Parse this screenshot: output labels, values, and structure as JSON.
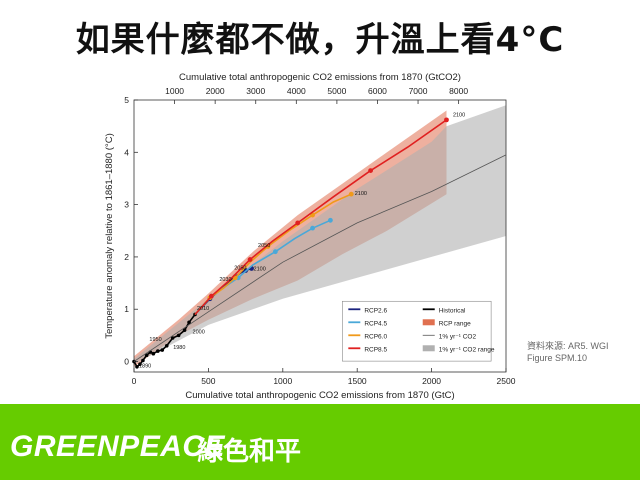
{
  "slide": {
    "title": "如果什麼都不做，升溫上看4°C",
    "source_line1": "資料來源: AR5. WGI",
    "source_line2": "Figure SPM.10"
  },
  "footer": {
    "brand": "GREENPEACE",
    "brand_cn": "綠色和平",
    "color": "#66cc00"
  },
  "chart_data": {
    "type": "line",
    "title_top": "Cumulative total anthropogenic CO2 emissions from 1870 (GtCO2)",
    "xlabel": "Cumulative total anthropogenic CO2 emissions from 1870 (GtC)",
    "ylabel": "Temperature anomaly relative to 1861–1880 (°C)",
    "xlim": [
      0,
      2500
    ],
    "ylim": [
      -0.2,
      5
    ],
    "x_ticks": [
      "0",
      "500",
      "1000",
      "1500",
      "2000",
      "2500"
    ],
    "y_ticks": [
      "0",
      "1",
      "2",
      "3",
      "4",
      "5"
    ],
    "top_ticks": [
      "1000",
      "2000",
      "3000",
      "4000",
      "5000",
      "6000",
      "7000",
      "8000"
    ],
    "legend_position": "bottom-right",
    "legend": [
      "RCP2.6",
      "RCP4.5",
      "RCP6.0",
      "RCP8.5",
      "Historical",
      "RCP range",
      "1% yr⁻¹ CO2",
      "1% yr⁻¹ CO2 range"
    ],
    "series": [
      {
        "name": "Historical",
        "color": "#000000",
        "points": [
          [
            0,
            0
          ],
          [
            20,
            -0.1
          ],
          [
            40,
            -0.05
          ],
          [
            60,
            0.02
          ],
          [
            85,
            0.12
          ],
          [
            110,
            0.18
          ],
          [
            130,
            0.15
          ],
          [
            160,
            0.2
          ],
          [
            190,
            0.22
          ],
          [
            220,
            0.3
          ],
          [
            260,
            0.45
          ],
          [
            300,
            0.5
          ],
          [
            340,
            0.6
          ],
          [
            370,
            0.75
          ],
          [
            410,
            0.9
          ]
        ]
      },
      {
        "name": "RCP2.6",
        "color": "#1a237e",
        "points": [
          [
            410,
            0.9
          ],
          [
            510,
            1.2
          ],
          [
            610,
            1.45
          ],
          [
            680,
            1.62
          ],
          [
            720,
            1.7
          ],
          [
            750,
            1.74
          ],
          [
            770,
            1.76
          ],
          [
            790,
            1.78
          ]
        ]
      },
      {
        "name": "RCP4.5",
        "color": "#4aa8d8",
        "points": [
          [
            410,
            0.9
          ],
          [
            520,
            1.25
          ],
          [
            620,
            1.45
          ],
          [
            700,
            1.6
          ],
          [
            800,
            1.85
          ],
          [
            950,
            2.1
          ],
          [
            1080,
            2.35
          ],
          [
            1200,
            2.55
          ],
          [
            1320,
            2.7
          ]
        ]
      },
      {
        "name": "RCP6.0",
        "color": "#f09a1a",
        "points": [
          [
            410,
            0.9
          ],
          [
            510,
            1.22
          ],
          [
            600,
            1.4
          ],
          [
            680,
            1.6
          ],
          [
            780,
            1.9
          ],
          [
            900,
            2.2
          ],
          [
            1040,
            2.5
          ],
          [
            1200,
            2.8
          ],
          [
            1340,
            3.05
          ],
          [
            1460,
            3.2
          ]
        ]
      },
      {
        "name": "RCP8.5",
        "color": "#e02020",
        "points": [
          [
            410,
            0.9
          ],
          [
            520,
            1.25
          ],
          [
            640,
            1.55
          ],
          [
            780,
            1.95
          ],
          [
            930,
            2.3
          ],
          [
            1100,
            2.65
          ],
          [
            1340,
            3.15
          ],
          [
            1590,
            3.65
          ],
          [
            1840,
            4.1
          ],
          [
            2100,
            4.62
          ]
        ]
      },
      {
        "name": "1% yr⁻¹ CO2",
        "color": "#555555",
        "points": [
          [
            0,
            0
          ],
          [
            500,
            0.95
          ],
          [
            1000,
            1.9
          ],
          [
            1500,
            2.65
          ],
          [
            2000,
            3.25
          ],
          [
            2500,
            3.95
          ]
        ]
      }
    ],
    "ranges": [
      {
        "name": "RCP range",
        "color": "#e07050",
        "upper": [
          [
            0,
            0.1
          ],
          [
            300,
            0.8
          ],
          [
            500,
            1.3
          ],
          [
            800,
            2.1
          ],
          [
            1100,
            2.8
          ],
          [
            1400,
            3.4
          ],
          [
            1700,
            4.0
          ],
          [
            2100,
            4.8
          ]
        ],
        "lower": [
          [
            2100,
            3.2
          ],
          [
            1700,
            2.5
          ],
          [
            1400,
            2.05
          ],
          [
            1100,
            1.55
          ],
          [
            800,
            1.2
          ],
          [
            500,
            0.8
          ],
          [
            300,
            0.5
          ],
          [
            0,
            -0.1
          ]
        ]
      },
      {
        "name": "1% yr⁻¹ CO2 range",
        "color": "#b0b0b0",
        "upper": [
          [
            0,
            0.05
          ],
          [
            500,
            1.2
          ],
          [
            1000,
            2.3
          ],
          [
            1500,
            3.3
          ],
          [
            2000,
            4.2
          ],
          [
            2100,
            4.5
          ],
          [
            2500,
            4.9
          ]
        ],
        "lower": [
          [
            2500,
            2.4
          ],
          [
            2000,
            2.0
          ],
          [
            1500,
            1.6
          ],
          [
            1000,
            1.2
          ],
          [
            500,
            0.7
          ],
          [
            0,
            -0.05
          ]
        ]
      }
    ],
    "year_labels": [
      {
        "text": "1890",
        "x": 20,
        "y": -0.15
      },
      {
        "text": "1950",
        "x": 90,
        "y": 0.35
      },
      {
        "text": "1980",
        "x": 250,
        "y": 0.2
      },
      {
        "text": "2000",
        "x": 380,
        "y": 0.5
      },
      {
        "text": "2010",
        "x": 410,
        "y": 0.95
      },
      {
        "text": "2030",
        "x": 560,
        "y": 1.5
      },
      {
        "text": "2050",
        "x": 660,
        "y": 1.72
      },
      {
        "text": "2100",
        "x": 790,
        "y": 1.7
      },
      {
        "text": "2050",
        "x": 820,
        "y": 2.15
      },
      {
        "text": "2100",
        "x": 2130,
        "y": 4.65
      },
      {
        "text": "2100",
        "x": 1470,
        "y": 3.15
      }
    ]
  }
}
